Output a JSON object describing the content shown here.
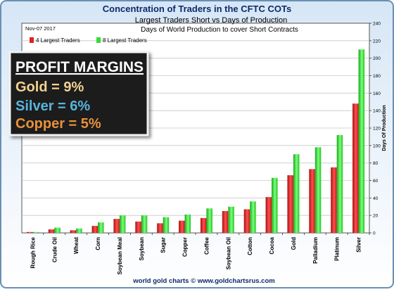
{
  "chart_data": {
    "type": "bar",
    "title": "Concentration of Traders in the CFTC COTs",
    "subtitle": "Largest Traders Short vs Days of Production",
    "subtitle2": "Days of World Production to cover Short Contracts",
    "date_label": "Nov-07 2017",
    "ylabel": "Days Of Production",
    "ylim": [
      0,
      240
    ],
    "yticks": [
      0,
      20,
      40,
      60,
      80,
      100,
      120,
      140,
      160,
      180,
      200,
      220,
      240
    ],
    "grid": true,
    "legend_position": "top-left",
    "categories": [
      "Rough Rice",
      "Crude Oil",
      "Wheat",
      "Corn",
      "Soybean Meal",
      "Soybean",
      "Sugar",
      "Copper",
      "Coffee",
      "Soybean Oil",
      "Cotton",
      "Cocoa",
      "Gold",
      "Palladium",
      "Platinum",
      "Silver"
    ],
    "series": [
      {
        "name": "4 Largest Traders",
        "color": "#e02020",
        "values": [
          1,
          4,
          3,
          8,
          16,
          13,
          11,
          14,
          17,
          25,
          27,
          41,
          66,
          73,
          75,
          148
        ]
      },
      {
        "name": "8 Largest Traders",
        "color": "#33dd33",
        "values": [
          1,
          6,
          5,
          12,
          20,
          20,
          18,
          21,
          28,
          30,
          36,
          63,
          90,
          98,
          112,
          210
        ]
      }
    ],
    "footer": "world gold charts © www.goldchartsrus.com"
  },
  "annotation": {
    "heading": "PROFIT MARGINS",
    "lines": [
      {
        "text": "Gold = 9%",
        "color": "#f3d291"
      },
      {
        "text": "Silver = 6%",
        "color": "#58b4dc"
      },
      {
        "text": "Copper = 5%",
        "color": "#e8913a"
      }
    ]
  }
}
